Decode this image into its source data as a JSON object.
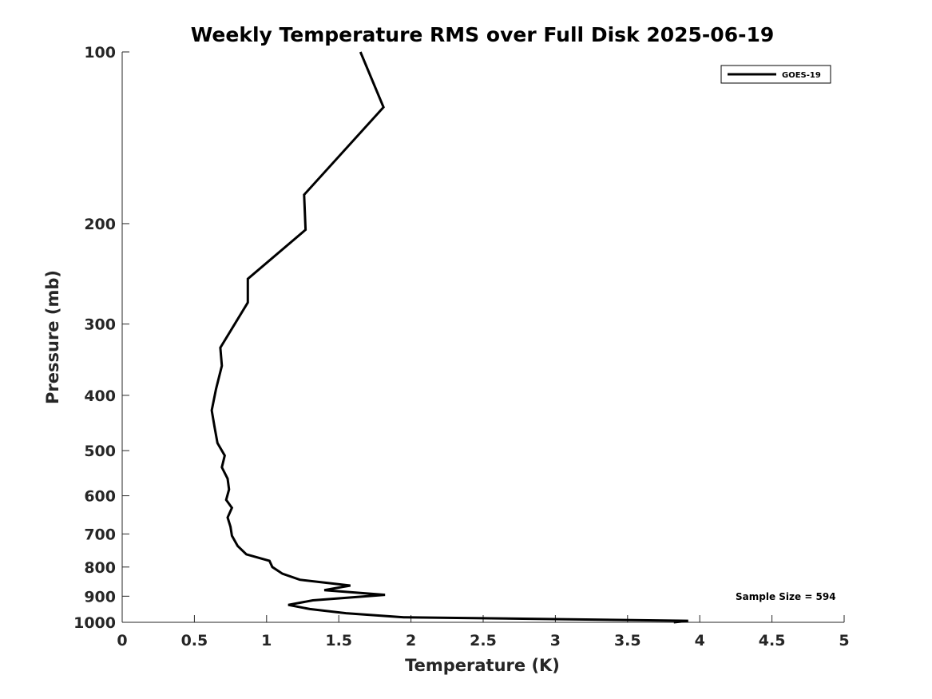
{
  "chart_data": {
    "type": "line",
    "title": "Weekly Temperature RMS over Full Disk 2025-06-19",
    "xlabel": "Temperature (K)",
    "ylabel": "Pressure (mb)",
    "xlim": [
      0,
      5
    ],
    "ylim": [
      100,
      1000
    ],
    "y_scale": "log",
    "y_reversed": true,
    "grid": false,
    "legend_position": "top-right",
    "x_ticks": [
      "0",
      "0.5",
      "1",
      "1.5",
      "2",
      "2.5",
      "3",
      "3.5",
      "4",
      "4.5",
      "5"
    ],
    "y_ticks": [
      "100",
      "200",
      "300",
      "400",
      "500",
      "600",
      "700",
      "800",
      "900",
      "1000"
    ],
    "series": [
      {
        "name": "GOES-19",
        "color": "#000000",
        "points": [
          [
            1.65,
            100
          ],
          [
            1.81,
            125
          ],
          [
            1.26,
            178
          ],
          [
            1.27,
            205
          ],
          [
            0.87,
            250
          ],
          [
            0.87,
            275
          ],
          [
            0.68,
            330
          ],
          [
            0.69,
            355
          ],
          [
            0.65,
            390
          ],
          [
            0.62,
            425
          ],
          [
            0.64,
            455
          ],
          [
            0.66,
            485
          ],
          [
            0.71,
            510
          ],
          [
            0.69,
            535
          ],
          [
            0.73,
            560
          ],
          [
            0.74,
            585
          ],
          [
            0.72,
            610
          ],
          [
            0.76,
            630
          ],
          [
            0.73,
            655
          ],
          [
            0.75,
            680
          ],
          [
            0.76,
            705
          ],
          [
            0.8,
            735
          ],
          [
            0.86,
            760
          ],
          [
            1.02,
            780
          ],
          [
            1.04,
            800
          ],
          [
            1.11,
            822
          ],
          [
            1.23,
            842
          ],
          [
            1.58,
            862
          ],
          [
            1.4,
            878
          ],
          [
            1.82,
            895
          ],
          [
            1.32,
            915
          ],
          [
            1.15,
            932
          ],
          [
            1.3,
            948
          ],
          [
            1.55,
            964
          ],
          [
            1.95,
            980
          ],
          [
            3.92,
            994
          ],
          [
            3.82,
            1000
          ]
        ]
      }
    ],
    "annotations": [
      "Sample Size = 594"
    ]
  }
}
